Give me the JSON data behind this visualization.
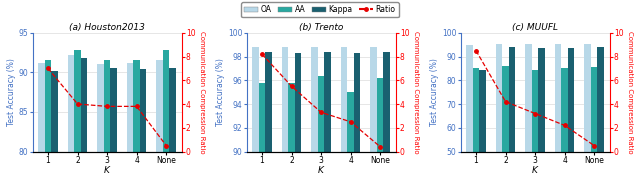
{
  "subplots": [
    {
      "title": "(a) Houston2013",
      "xlabel": "K",
      "ylabel_left": "Test Accuracy (%)",
      "ylabel_right": "Communication Compression Ratio",
      "ylim": [
        80,
        95
      ],
      "ylim2": [
        0,
        10
      ],
      "yticks": [
        80,
        85,
        90,
        95
      ],
      "yticks2": [
        0,
        2,
        4,
        6,
        8,
        10
      ],
      "xticks": [
        "1",
        "2",
        "3",
        "4",
        "None"
      ],
      "OA": [
        91.2,
        92.2,
        91.1,
        91.2,
        91.5
      ],
      "AA": [
        91.5,
        92.8,
        91.5,
        91.5,
        92.8
      ],
      "Kappa": [
        90.2,
        91.8,
        90.5,
        90.4,
        90.6
      ],
      "Ratio": [
        7.0,
        4.0,
        3.8,
        3.8,
        0.5
      ]
    },
    {
      "title": "(b) Trento",
      "xlabel": "K",
      "ylabel_left": "Test Accuracy (%)",
      "ylabel_right": "Communication Compression Ratio",
      "ylim": [
        90,
        100
      ],
      "ylim2": [
        0,
        10
      ],
      "yticks": [
        90,
        92,
        94,
        96,
        98,
        100
      ],
      "yticks2": [
        0,
        2,
        4,
        6,
        8,
        10
      ],
      "xticks": [
        "1",
        "2",
        "3",
        "4",
        "None"
      ],
      "OA": [
        98.8,
        98.8,
        98.8,
        98.8,
        98.8
      ],
      "AA": [
        95.8,
        95.8,
        96.4,
        95.0,
        96.2
      ],
      "Kappa": [
        98.4,
        98.3,
        98.4,
        98.3,
        98.4
      ],
      "Ratio": [
        8.2,
        5.5,
        3.3,
        2.5,
        0.4
      ]
    },
    {
      "title": "(c) MUUFL",
      "xlabel": "K",
      "ylabel_left": "Test Accuracy (%)",
      "ylabel_right": "Communication Compression Ratio",
      "ylim": [
        50,
        100
      ],
      "ylim2": [
        0,
        10
      ],
      "yticks": [
        50,
        60,
        70,
        80,
        90,
        100
      ],
      "yticks2": [
        0,
        2,
        4,
        6,
        8,
        10
      ],
      "xticks": [
        "1",
        "2",
        "3",
        "4",
        "None"
      ],
      "OA": [
        95.0,
        95.2,
        95.2,
        95.2,
        95.2
      ],
      "AA": [
        85.0,
        85.8,
        84.2,
        85.0,
        85.5
      ],
      "Kappa": [
        84.5,
        94.0,
        93.5,
        93.6,
        93.8
      ],
      "Ratio": [
        8.5,
        4.2,
        3.2,
        2.2,
        0.5
      ]
    }
  ],
  "color_OA": "#b8d8e8",
  "color_AA": "#29a8a0",
  "color_Kappa": "#1a6070",
  "color_Ratio": "#e60000",
  "bar_width": 0.22,
  "left_label_color": "#4472c4",
  "right_label_color": "#ff0000",
  "spine_left_color": "#4472c4",
  "spine_right_color": "#ff0000"
}
